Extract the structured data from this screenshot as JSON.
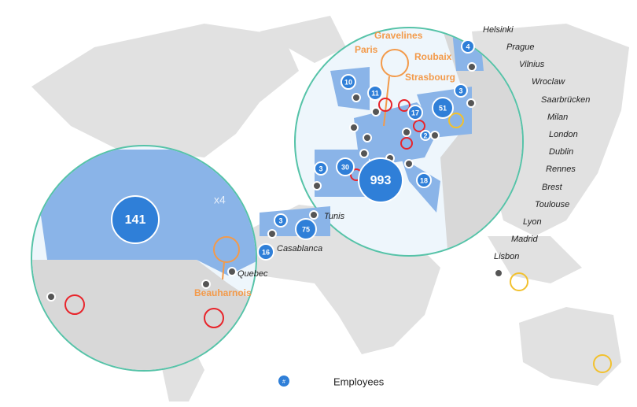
{
  "bubbles": [
    141,
    993,
    75,
    51,
    30,
    18,
    17,
    16,
    11,
    10,
    4,
    3,
    3,
    3,
    2
  ],
  "cities": [
    "Helsinki",
    "Prague",
    "Vilnius",
    "Wroclaw",
    "Saarbrücken",
    "Milan",
    "London",
    "Dublin",
    "Rennes",
    "Brest",
    "Toulouse",
    "Lyon",
    "Madrid",
    "Lisbon",
    "Tunis",
    "Casablanca",
    "Quebec"
  ],
  "sites": [
    "Gravelines",
    "Paris",
    "Roubaix",
    "Strasbourg",
    "Beauharnois"
  ],
  "zoom_label": "x4",
  "legend": {
    "symbol": "#",
    "label": "Employees"
  }
}
